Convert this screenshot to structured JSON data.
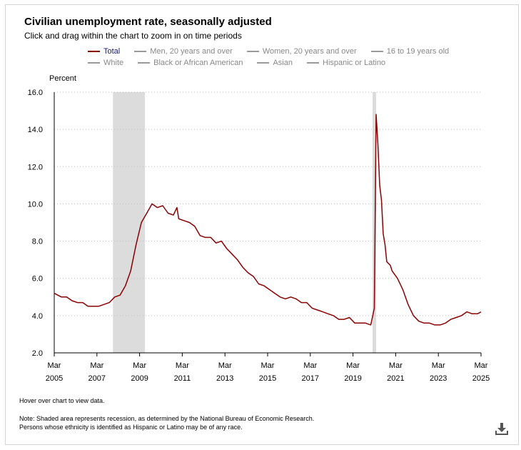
{
  "title": "Civilian unemployment rate, seasonally adjusted",
  "subtitle": "Click and drag within the chart to zoom in on time periods",
  "hover_note": "Hover over chart to view data.",
  "footnote_lines": [
    "Note: Shaded area represents recession, as determined by the National Bureau of Economic Research.",
    "Persons whose ethnicity is identified as Hispanic or Latino may be of any race."
  ],
  "download_icon": "download-icon",
  "legend": [
    {
      "label": "Total",
      "color": "#8b0000",
      "active": true
    },
    {
      "label": "Men, 20 years and over",
      "color": "#999999",
      "active": false
    },
    {
      "label": "Women, 20 years and over",
      "color": "#999999",
      "active": false
    },
    {
      "label": "16 to 19 years old",
      "color": "#999999",
      "active": false
    },
    {
      "label": "White",
      "color": "#999999",
      "active": false
    },
    {
      "label": "Black or African American",
      "color": "#999999",
      "active": false
    },
    {
      "label": "Asian",
      "color": "#999999",
      "active": false
    },
    {
      "label": "Hispanic or Latino",
      "color": "#999999",
      "active": false
    }
  ],
  "chart_data": {
    "type": "line",
    "title": "Civilian unemployment rate, seasonally adjusted",
    "ylabel": "Percent",
    "xlabel": "",
    "ylim": [
      2.0,
      16.0
    ],
    "y_ticks": [
      "16.0",
      "14.0",
      "12.0",
      "10.0",
      "8.0",
      "6.0",
      "4.0",
      "2.0"
    ],
    "x_ticks": [
      {
        "month": "Mar",
        "year": "2005",
        "t": 2005.167
      },
      {
        "month": "Mar",
        "year": "2007",
        "t": 2007.167
      },
      {
        "month": "Mar",
        "year": "2009",
        "t": 2009.167
      },
      {
        "month": "Mar",
        "year": "2011",
        "t": 2011.167
      },
      {
        "month": "Mar",
        "year": "2013",
        "t": 2013.167
      },
      {
        "month": "Mar",
        "year": "2015",
        "t": 2015.167
      },
      {
        "month": "Mar",
        "year": "2017",
        "t": 2017.167
      },
      {
        "month": "Mar",
        "year": "2019",
        "t": 2019.167
      },
      {
        "month": "Mar",
        "year": "2021",
        "t": 2021.167
      },
      {
        "month": "Mar",
        "year": "2023",
        "t": 2023.167
      },
      {
        "month": "Mar",
        "year": "2025",
        "t": 2025.167
      }
    ],
    "xlim": [
      2005.167,
      2025.167
    ],
    "grid": true,
    "recessions": [
      [
        2007.917,
        2009.417
      ],
      [
        2020.083,
        2020.25
      ]
    ],
    "series": [
      {
        "name": "Total",
        "color": "#8b0000",
        "points": [
          [
            2005.167,
            5.2
          ],
          [
            2005.5,
            5.0
          ],
          [
            2005.75,
            5.0
          ],
          [
            2006.0,
            4.8
          ],
          [
            2006.25,
            4.7
          ],
          [
            2006.5,
            4.7
          ],
          [
            2006.75,
            4.5
          ],
          [
            2007.0,
            4.5
          ],
          [
            2007.25,
            4.5
          ],
          [
            2007.5,
            4.6
          ],
          [
            2007.75,
            4.7
          ],
          [
            2008.0,
            5.0
          ],
          [
            2008.25,
            5.1
          ],
          [
            2008.5,
            5.6
          ],
          [
            2008.75,
            6.4
          ],
          [
            2009.0,
            7.8
          ],
          [
            2009.25,
            9.0
          ],
          [
            2009.5,
            9.5
          ],
          [
            2009.75,
            10.0
          ],
          [
            2010.0,
            9.8
          ],
          [
            2010.25,
            9.9
          ],
          [
            2010.5,
            9.5
          ],
          [
            2010.75,
            9.4
          ],
          [
            2010.917,
            9.8
          ],
          [
            2011.0,
            9.2
          ],
          [
            2011.25,
            9.1
          ],
          [
            2011.5,
            9.0
          ],
          [
            2011.75,
            8.8
          ],
          [
            2012.0,
            8.3
          ],
          [
            2012.25,
            8.2
          ],
          [
            2012.5,
            8.2
          ],
          [
            2012.75,
            7.9
          ],
          [
            2013.0,
            8.0
          ],
          [
            2013.25,
            7.6
          ],
          [
            2013.5,
            7.3
          ],
          [
            2013.75,
            7.0
          ],
          [
            2014.0,
            6.6
          ],
          [
            2014.25,
            6.3
          ],
          [
            2014.5,
            6.1
          ],
          [
            2014.75,
            5.7
          ],
          [
            2015.0,
            5.6
          ],
          [
            2015.25,
            5.4
          ],
          [
            2015.5,
            5.2
          ],
          [
            2015.75,
            5.0
          ],
          [
            2016.0,
            4.9
          ],
          [
            2016.25,
            5.0
          ],
          [
            2016.5,
            4.9
          ],
          [
            2016.75,
            4.7
          ],
          [
            2017.0,
            4.7
          ],
          [
            2017.25,
            4.4
          ],
          [
            2017.5,
            4.3
          ],
          [
            2017.75,
            4.2
          ],
          [
            2018.0,
            4.1
          ],
          [
            2018.25,
            4.0
          ],
          [
            2018.5,
            3.8
          ],
          [
            2018.75,
            3.8
          ],
          [
            2019.0,
            3.9
          ],
          [
            2019.25,
            3.6
          ],
          [
            2019.5,
            3.6
          ],
          [
            2019.75,
            3.6
          ],
          [
            2020.0,
            3.5
          ],
          [
            2020.167,
            4.4
          ],
          [
            2020.25,
            14.8
          ],
          [
            2020.333,
            13.2
          ],
          [
            2020.417,
            11.0
          ],
          [
            2020.5,
            10.2
          ],
          [
            2020.583,
            8.4
          ],
          [
            2020.667,
            7.8
          ],
          [
            2020.75,
            6.9
          ],
          [
            2020.917,
            6.7
          ],
          [
            2021.0,
            6.4
          ],
          [
            2021.25,
            6.0
          ],
          [
            2021.5,
            5.4
          ],
          [
            2021.75,
            4.6
          ],
          [
            2022.0,
            4.0
          ],
          [
            2022.25,
            3.7
          ],
          [
            2022.5,
            3.6
          ],
          [
            2022.75,
            3.6
          ],
          [
            2023.0,
            3.5
          ],
          [
            2023.25,
            3.5
          ],
          [
            2023.5,
            3.6
          ],
          [
            2023.75,
            3.8
          ],
          [
            2024.0,
            3.9
          ],
          [
            2024.25,
            4.0
          ],
          [
            2024.5,
            4.2
          ],
          [
            2024.75,
            4.1
          ],
          [
            2025.0,
            4.1
          ],
          [
            2025.167,
            4.2
          ]
        ]
      }
    ]
  }
}
